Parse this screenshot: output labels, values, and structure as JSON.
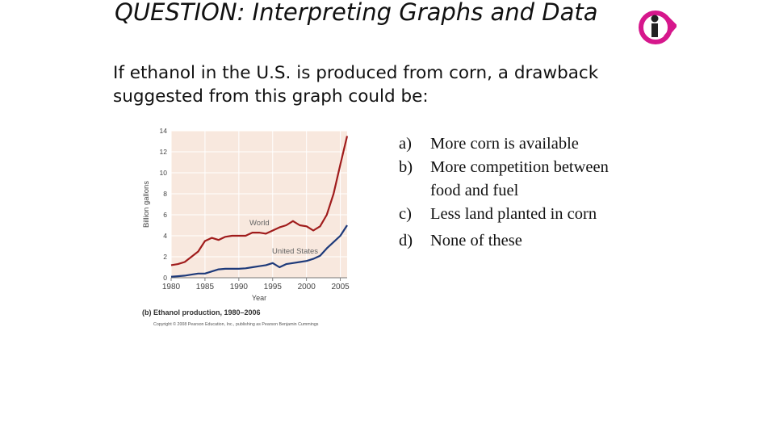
{
  "slide": {
    "title": "QUESTION: Interpreting Graphs and Data",
    "question": "If ethanol in the U.S. is produced from corn, a drawback suggested from this graph could be:",
    "logo_icon": "info-i-logo-icon",
    "colors": {
      "logo": "#d6178c",
      "logo_dark": "#222222"
    }
  },
  "answers": [
    {
      "letter": "a)",
      "text": "More corn is available"
    },
    {
      "letter": "b)",
      "text": "More competition between food and fuel"
    },
    {
      "letter": "c)",
      "text": "Less land planted in corn"
    },
    {
      "letter": "d)",
      "text": "None of these"
    }
  ],
  "chart_data": {
    "type": "line",
    "title": "",
    "caption": "(b) Ethanol production, 1980–2006",
    "copyright": "Copyright © 2008 Pearson Education, Inc., publishing as Pearson Benjamin Cummings",
    "xlabel": "Year",
    "ylabel": "Billion gallons",
    "xlim": [
      1980,
      2006
    ],
    "ylim": [
      0,
      14
    ],
    "x_ticks": [
      1980,
      1985,
      1990,
      1995,
      2000,
      2005
    ],
    "y_ticks": [
      0,
      2,
      4,
      6,
      8,
      10,
      12,
      14
    ],
    "grid": true,
    "background": "#f8e8de",
    "series": [
      {
        "name": "World",
        "color": "#a01c1c",
        "points": [
          [
            1980,
            1.2
          ],
          [
            1981,
            1.3
          ],
          [
            1982,
            1.5
          ],
          [
            1983,
            2.0
          ],
          [
            1984,
            2.5
          ],
          [
            1985,
            3.5
          ],
          [
            1986,
            3.8
          ],
          [
            1987,
            3.6
          ],
          [
            1988,
            3.9
          ],
          [
            1989,
            4.0
          ],
          [
            1990,
            4.0
          ],
          [
            1991,
            4.0
          ],
          [
            1992,
            4.3
          ],
          [
            1993,
            4.3
          ],
          [
            1994,
            4.2
          ],
          [
            1995,
            4.5
          ],
          [
            1996,
            4.8
          ],
          [
            1997,
            5.0
          ],
          [
            1998,
            5.4
          ],
          [
            1999,
            5.0
          ],
          [
            2000,
            4.9
          ],
          [
            2001,
            4.5
          ],
          [
            2002,
            4.9
          ],
          [
            2003,
            6.0
          ],
          [
            2004,
            8.0
          ],
          [
            2005,
            10.8
          ],
          [
            2006,
            13.5
          ]
        ]
      },
      {
        "name": "United States",
        "color": "#1e3a7a",
        "points": [
          [
            1980,
            0.1
          ],
          [
            1981,
            0.15
          ],
          [
            1982,
            0.2
          ],
          [
            1983,
            0.3
          ],
          [
            1984,
            0.4
          ],
          [
            1985,
            0.4
          ],
          [
            1986,
            0.6
          ],
          [
            1987,
            0.8
          ],
          [
            1988,
            0.85
          ],
          [
            1989,
            0.85
          ],
          [
            1990,
            0.85
          ],
          [
            1991,
            0.9
          ],
          [
            1992,
            1.0
          ],
          [
            1993,
            1.1
          ],
          [
            1994,
            1.2
          ],
          [
            1995,
            1.4
          ],
          [
            1996,
            1.0
          ],
          [
            1997,
            1.3
          ],
          [
            1998,
            1.4
          ],
          [
            1999,
            1.5
          ],
          [
            2000,
            1.6
          ],
          [
            2001,
            1.8
          ],
          [
            2002,
            2.1
          ],
          [
            2003,
            2.8
          ],
          [
            2004,
            3.4
          ],
          [
            2005,
            4.0
          ],
          [
            2006,
            5.0
          ]
        ]
      }
    ]
  }
}
